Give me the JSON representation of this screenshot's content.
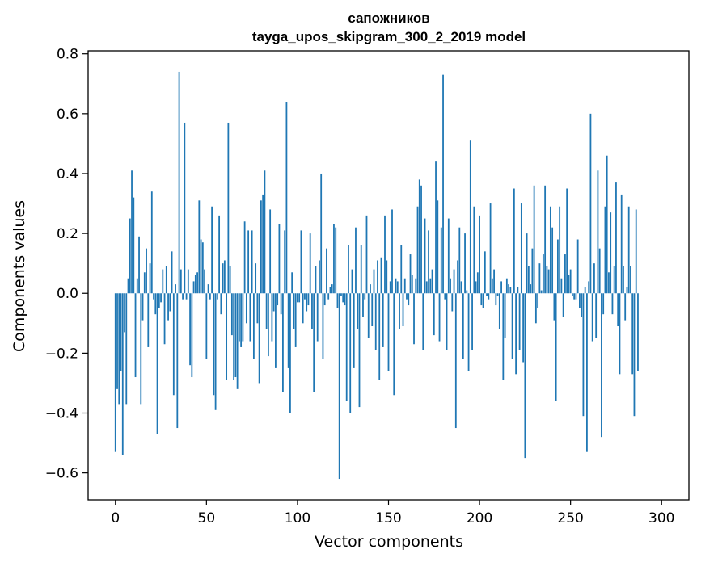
{
  "chart_data": {
    "type": "bar",
    "title": "сапожников",
    "subtitle": "tayga_upos_skipgram_300_2_2019 model",
    "xlabel": "Vector components",
    "ylabel": "Components values",
    "xlim": [
      -15,
      315
    ],
    "ylim": [
      -0.69,
      0.81
    ],
    "xticks": [
      0,
      50,
      100,
      150,
      200,
      250,
      300
    ],
    "xtick_labels": [
      "0",
      "50",
      "100",
      "150",
      "200",
      "250",
      "300"
    ],
    "yticks": [
      -0.6,
      -0.4,
      -0.2,
      0.0,
      0.2,
      0.4,
      0.6,
      0.8
    ],
    "ytick_labels": [
      "−0.6",
      "−0.4",
      "−0.2",
      "0.0",
      "0.2",
      "0.4",
      "0.6",
      "0.8"
    ],
    "bar_color": "#1f77b4",
    "grid": false,
    "values": [
      -0.53,
      -0.32,
      -0.37,
      -0.26,
      -0.54,
      -0.13,
      -0.37,
      0.05,
      0.25,
      0.41,
      0.32,
      -0.28,
      0.05,
      0.19,
      -0.37,
      -0.09,
      0.07,
      0.15,
      -0.18,
      0.1,
      0.34,
      -0.02,
      -0.07,
      -0.47,
      -0.05,
      -0.03,
      0.08,
      -0.17,
      0.09,
      -0.09,
      -0.06,
      0.14,
      -0.34,
      0.03,
      -0.45,
      0.74,
      0.08,
      -0.02,
      0.57,
      -0.02,
      0.08,
      -0.24,
      -0.28,
      0.04,
      0.06,
      0.07,
      0.31,
      0.18,
      0.17,
      0.08,
      -0.22,
      0.03,
      -0.02,
      0.29,
      -0.34,
      -0.39,
      -0.02,
      0.26,
      -0.07,
      0.1,
      0.11,
      -0.29,
      0.57,
      0.09,
      -0.14,
      -0.29,
      -0.28,
      -0.32,
      -0.16,
      -0.18,
      -0.16,
      0.24,
      -0.1,
      0.21,
      -0.16,
      0.21,
      -0.22,
      0.1,
      -0.1,
      -0.3,
      0.31,
      0.33,
      0.41,
      -0.12,
      -0.21,
      0.28,
      -0.16,
      -0.06,
      -0.25,
      -0.04,
      0.23,
      -0.07,
      -0.33,
      0.21,
      0.64,
      -0.25,
      -0.4,
      0.07,
      -0.12,
      -0.18,
      -0.03,
      -0.03,
      0.21,
      -0.1,
      -0.02,
      -0.06,
      -0.04,
      0.2,
      -0.12,
      -0.33,
      0.09,
      -0.16,
      0.11,
      0.4,
      -0.22,
      -0.04,
      0.15,
      -0.02,
      0.02,
      0.03,
      0.23,
      0.22,
      -0.05,
      -0.62,
      -0.01,
      -0.03,
      -0.04,
      -0.36,
      0.16,
      -0.4,
      0.08,
      -0.25,
      0.22,
      -0.12,
      -0.38,
      0.16,
      -0.08,
      -0.02,
      0.26,
      -0.15,
      0.03,
      -0.11,
      0.08,
      -0.19,
      0.11,
      -0.29,
      0.12,
      -0.18,
      0.26,
      0.11,
      -0.26,
      0.04,
      0.28,
      -0.34,
      0.05,
      0.04,
      -0.12,
      0.16,
      -0.11,
      0.05,
      -0.02,
      -0.04,
      0.13,
      0.06,
      -0.17,
      0.05,
      0.29,
      0.38,
      0.36,
      -0.19,
      0.25,
      0.04,
      0.21,
      0.05,
      0.08,
      -0.14,
      0.44,
      0.31,
      -0.16,
      0.22,
      0.73,
      -0.02,
      -0.19,
      0.25,
      0.05,
      -0.06,
      0.08,
      -0.45,
      0.11,
      0.22,
      0.04,
      -0.22,
      0.2,
      0.01,
      -0.26,
      0.51,
      -0.19,
      0.29,
      0.04,
      0.07,
      0.26,
      -0.04,
      -0.05,
      0.14,
      -0.01,
      -0.02,
      0.3,
      0.05,
      0.08,
      -0.04,
      -0.01,
      -0.12,
      0.04,
      -0.29,
      -0.15,
      0.05,
      0.03,
      0.02,
      -0.22,
      0.35,
      -0.27,
      0.02,
      -0.19,
      0.3,
      -0.23,
      -0.55,
      0.2,
      0.09,
      0.03,
      0.15,
      0.36,
      -0.1,
      -0.05,
      0.1,
      0.01,
      0.13,
      0.36,
      0.09,
      0.08,
      0.29,
      0.22,
      -0.09,
      -0.36,
      0.18,
      0.29,
      0.05,
      -0.08,
      0.13,
      0.35,
      0.06,
      0.08,
      -0.01,
      -0.02,
      -0.02,
      0.18,
      -0.05,
      -0.08,
      -0.41,
      0.02,
      -0.53,
      0.04,
      0.6,
      -0.16,
      0.1,
      -0.15,
      0.41,
      0.15,
      -0.48,
      -0.07,
      0.29,
      0.46,
      0.07,
      0.27,
      -0.07,
      0.09,
      0.37,
      -0.11,
      -0.27,
      0.33,
      0.09,
      -0.09,
      0.02,
      0.29,
      0.09,
      -0.27,
      -0.41,
      0.28,
      -0.26
    ]
  }
}
